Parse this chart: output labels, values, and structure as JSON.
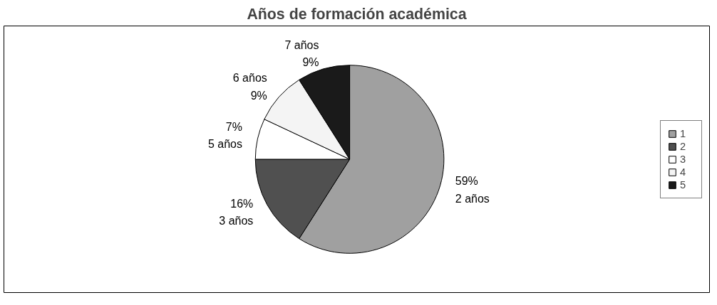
{
  "chart_data": {
    "type": "pie",
    "title": "Años de formación académica",
    "categories": [
      "1",
      "2",
      "3",
      "4",
      "5"
    ],
    "values": [
      59,
      16,
      7,
      9,
      9
    ],
    "value_labels": [
      "59%",
      "16%",
      "7%",
      "9%",
      "9%"
    ],
    "colors": [
      "#a0a0a0",
      "#505050",
      "#ffffff",
      "#f4f4f4",
      "#1a1a1a"
    ],
    "annotations": [
      "2 años",
      "3 años",
      "5 años",
      "6 años",
      "7 años"
    ],
    "legend": "right"
  }
}
